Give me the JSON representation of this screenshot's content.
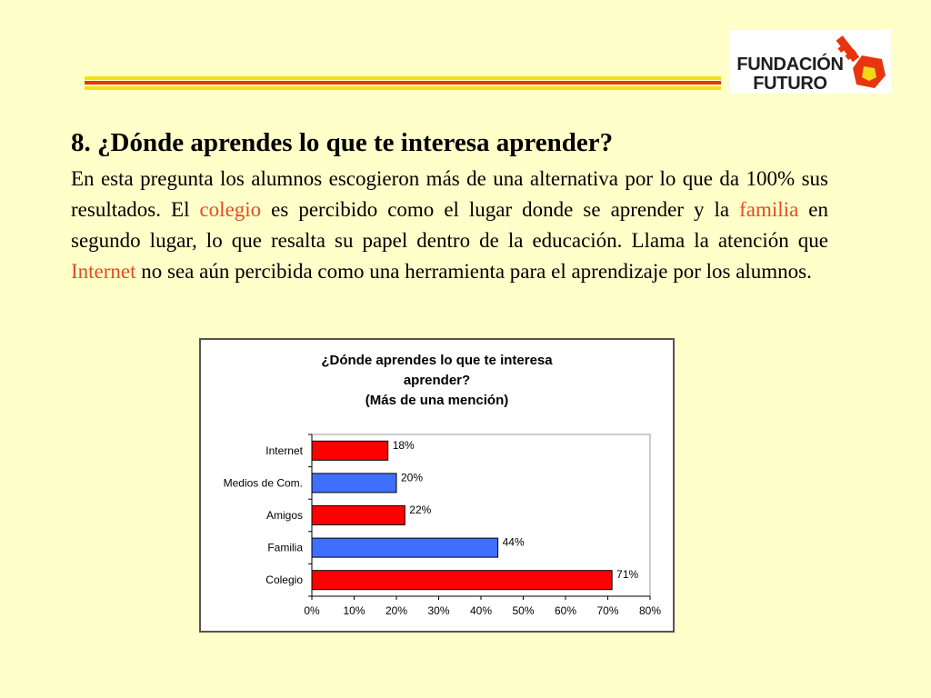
{
  "logo": {
    "line1": "FUNDACIÓN",
    "line2": "FUTURO"
  },
  "heading": "8. ¿Dónde aprendes lo que te interesa aprender?",
  "paragraph": {
    "p1": "En esta pregunta los alumnos escogieron más de una alternativa por lo que da 100% sus resultados. El ",
    "h1": "colegio",
    "p2": " es percibido como el lugar donde se aprender y la ",
    "h2": "familia",
    "p3": " en segundo lugar, lo que resalta su papel dentro de la educación. Llama la atención que ",
    "h3": "Internet",
    "p4": " no sea aún percibida como una herramienta para el aprendizaje por los alumnos."
  },
  "colors": {
    "red": "#ff0000",
    "blue": "#3f6fff",
    "highlight": "#e34b24"
  },
  "chart_data": {
    "type": "bar",
    "orientation": "horizontal",
    "title_lines": [
      "¿Dónde aprendes lo que te interesa",
      "aprender?",
      "(Más de una mención)"
    ],
    "categories": [
      "Internet",
      "Medios de Com.",
      "Amigos",
      "Familia",
      "Colegio"
    ],
    "values": [
      18,
      20,
      22,
      44,
      71
    ],
    "data_labels": [
      "18%",
      "20%",
      "22%",
      "44%",
      "71%"
    ],
    "bar_colors": [
      "#ff0000",
      "#3f6fff",
      "#ff0000",
      "#3f6fff",
      "#ff0000"
    ],
    "xlim": [
      0,
      80
    ],
    "xticks": [
      0,
      10,
      20,
      30,
      40,
      50,
      60,
      70,
      80
    ],
    "xtick_labels": [
      "0%",
      "10%",
      "20%",
      "30%",
      "40%",
      "50%",
      "60%",
      "70%",
      "80%"
    ],
    "grid": false,
    "legend": "none"
  }
}
